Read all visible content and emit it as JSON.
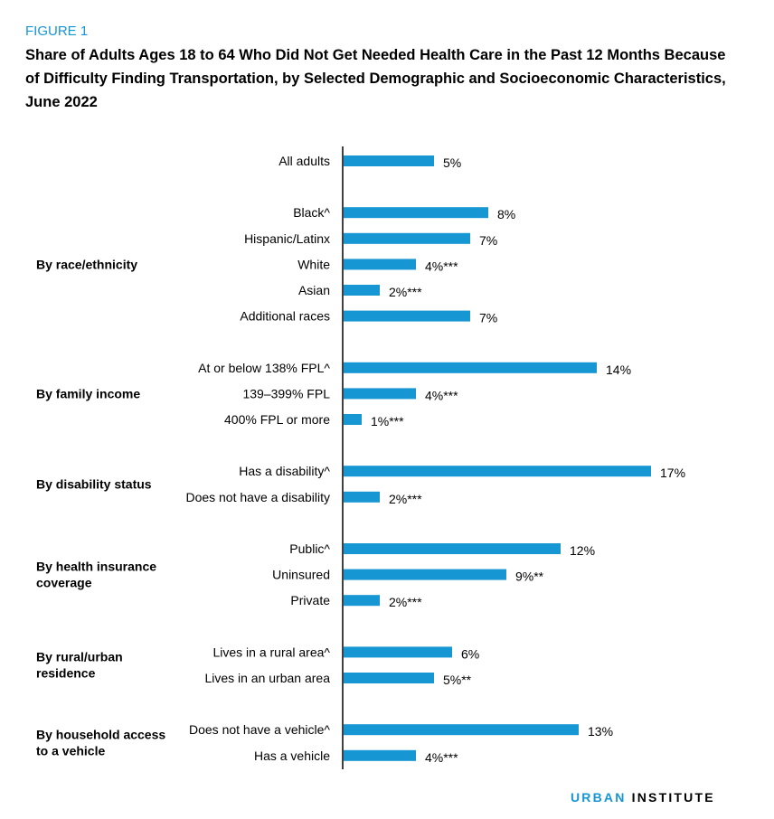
{
  "figure_label": "FIGURE 1",
  "title": "Share of Adults Ages 18 to 64 Who Did Not Get Needed Health Care in the Past 12 Months Because of Difficulty Finding Transportation, by Selected Demographic and Socioeconomic Characteristics, June 2022",
  "logo": {
    "part1": "URBAN",
    "part2": "INSTITUTE"
  },
  "colors": {
    "bar": "#1696d2",
    "accent": "#1696d2",
    "axis": "#000000"
  },
  "chart_data": {
    "type": "bar",
    "orientation": "horizontal",
    "xlim": [
      0,
      17.5
    ],
    "grid": false,
    "groups": [
      {
        "label": "",
        "rows": [
          {
            "label": "All adults",
            "value": 5,
            "value_label": "5%"
          }
        ]
      },
      {
        "label": "By race/ethnicity",
        "rows": [
          {
            "label": "Black^",
            "value": 8,
            "value_label": "8%"
          },
          {
            "label": "Hispanic/Latinx",
            "value": 7,
            "value_label": "7%"
          },
          {
            "label": "White",
            "value": 4,
            "value_label": "4%***"
          },
          {
            "label": "Asian",
            "value": 2,
            "value_label": "2%***"
          },
          {
            "label": "Additional races",
            "value": 7,
            "value_label": "7%"
          }
        ]
      },
      {
        "label": "By family income",
        "rows": [
          {
            "label": "At or below 138% FPL^",
            "value": 14,
            "value_label": "14%"
          },
          {
            "label": "139–399% FPL",
            "value": 4,
            "value_label": "4%***"
          },
          {
            "label": "400% FPL or more",
            "value": 1,
            "value_label": "1%***"
          }
        ]
      },
      {
        "label": "By disability status",
        "rows": [
          {
            "label": "Has a disability^",
            "value": 17,
            "value_label": "17%"
          },
          {
            "label": "Does not have a disability",
            "value": 2,
            "value_label": "2%***"
          }
        ]
      },
      {
        "label": "By health insurance coverage",
        "rows": [
          {
            "label": "Public^",
            "value": 12,
            "value_label": "12%"
          },
          {
            "label": "Uninsured",
            "value": 9,
            "value_label": "9%**"
          },
          {
            "label": "Private",
            "value": 2,
            "value_label": "2%***"
          }
        ]
      },
      {
        "label": "By rural/urban residence",
        "rows": [
          {
            "label": "Lives in a rural area^",
            "value": 6,
            "value_label": "6%"
          },
          {
            "label": "Lives in an urban area",
            "value": 5,
            "value_label": "5%**"
          }
        ]
      },
      {
        "label": "By household access to a vehicle",
        "rows": [
          {
            "label": "Does not have a vehicle^",
            "value": 13,
            "value_label": "13%"
          },
          {
            "label": "Has a vehicle",
            "value": 4,
            "value_label": "4%***"
          }
        ]
      }
    ]
  }
}
